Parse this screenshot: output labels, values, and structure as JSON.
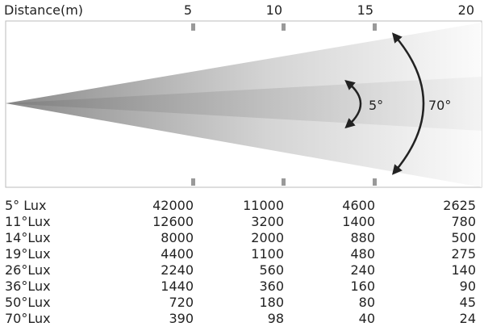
{
  "header": {
    "title": "Distance(m)",
    "distances": [
      5,
      10,
      15,
      20
    ]
  },
  "beam": {
    "angles": [
      "5°",
      "70°"
    ]
  },
  "table": {
    "rows": [
      [
        "5° Lux",
        42000,
        11000,
        4600,
        2625
      ],
      [
        "11°Lux",
        12600,
        3200,
        1400,
        780
      ],
      [
        "14°Lux",
        8000,
        2000,
        880,
        500
      ],
      [
        "19°Lux",
        4400,
        1100,
        480,
        275
      ],
      [
        "26°Lux",
        2240,
        560,
        240,
        140
      ],
      [
        "36°Lux",
        1440,
        360,
        160,
        90
      ],
      [
        "50°Lux",
        720,
        180,
        80,
        45
      ],
      [
        "70°Lux",
        390,
        98,
        40,
        24
      ]
    ]
  }
}
